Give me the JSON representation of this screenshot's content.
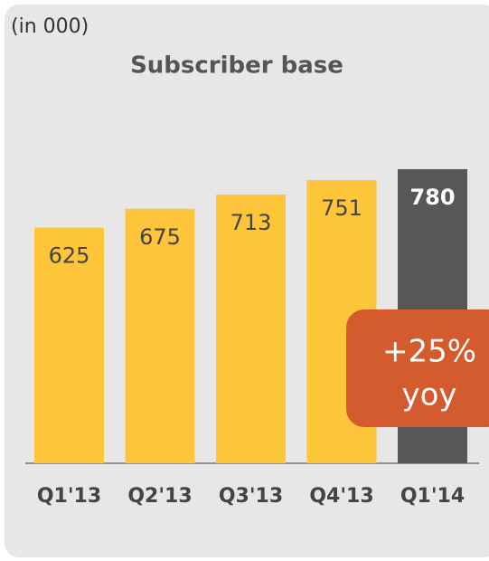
{
  "chart_data": {
    "type": "bar",
    "unit_note": "(in 000)",
    "title": "Subscriber base",
    "categories": [
      "Q1'13",
      "Q2'13",
      "Q3'13",
      "Q4'13",
      "Q1'14"
    ],
    "values": [
      625,
      675,
      713,
      751,
      780
    ],
    "colors": [
      "#ffc53a",
      "#ffc53a",
      "#ffc53a",
      "#ffc53a",
      "#575757"
    ],
    "annotation": [
      "+25%",
      "yoy"
    ]
  }
}
